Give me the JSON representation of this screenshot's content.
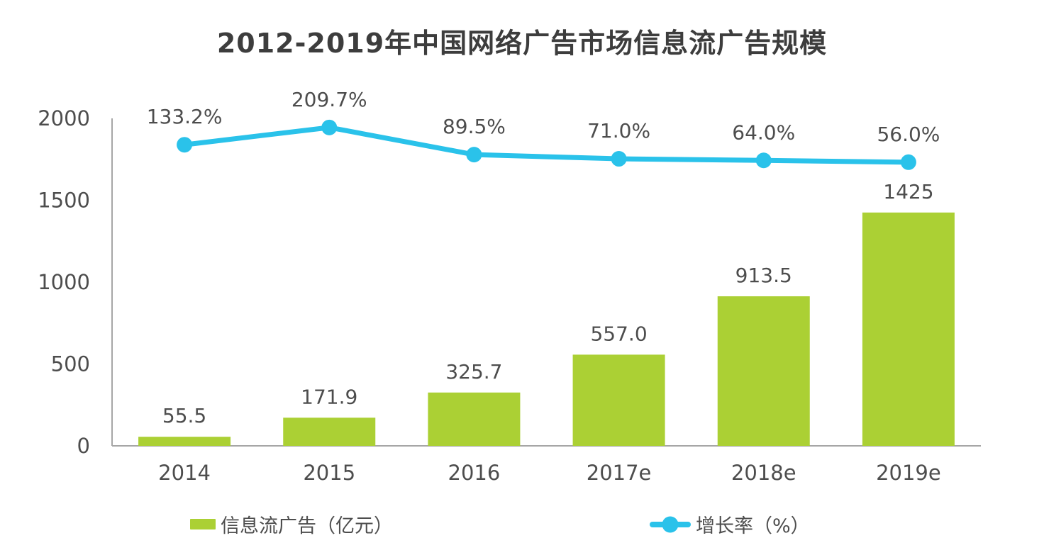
{
  "title": "2012-2019年中国网络广告市场信息流广告规模",
  "chart_data": {
    "type": "bar",
    "subtype": "combo-bar-line",
    "title": "2012-2019年中国网络广告市场信息流广告规模",
    "categories": [
      "2014",
      "2015",
      "2016",
      "2017e",
      "2018e",
      "2019e"
    ],
    "series": [
      {
        "name": "信息流广告（亿元）",
        "type": "bar",
        "axis": "primary",
        "color": "#abd034",
        "values": [
          "55.5",
          "171.9",
          "325.7",
          "557.0",
          "913.5",
          "1425"
        ]
      },
      {
        "name": "增长率（%）",
        "type": "line",
        "axis": "secondary",
        "color": "#2ac2ea",
        "values": [
          "133.2%",
          "209.7%",
          "89.5%",
          "71.0%",
          "64.0%",
          "56.0%"
        ]
      }
    ],
    "y_axis": {
      "min": 0,
      "max": 2000,
      "ticks": [
        "0",
        "500",
        "1000",
        "1500",
        "2000"
      ]
    },
    "secondary_axis_hidden": {
      "min": -1200,
      "max": 250
    },
    "grid": "off",
    "legend_position": "bottom"
  },
  "legend": {
    "bar_label": "信息流广告（亿元）",
    "line_label": "增长率（%）"
  },
  "colors": {
    "bar": "#abd034",
    "line": "#2ac2ea",
    "text": "#4d4d4d",
    "title_text": "#3d3d3d",
    "axis_line": "#a6a6a6",
    "background": "#ffffff"
  }
}
